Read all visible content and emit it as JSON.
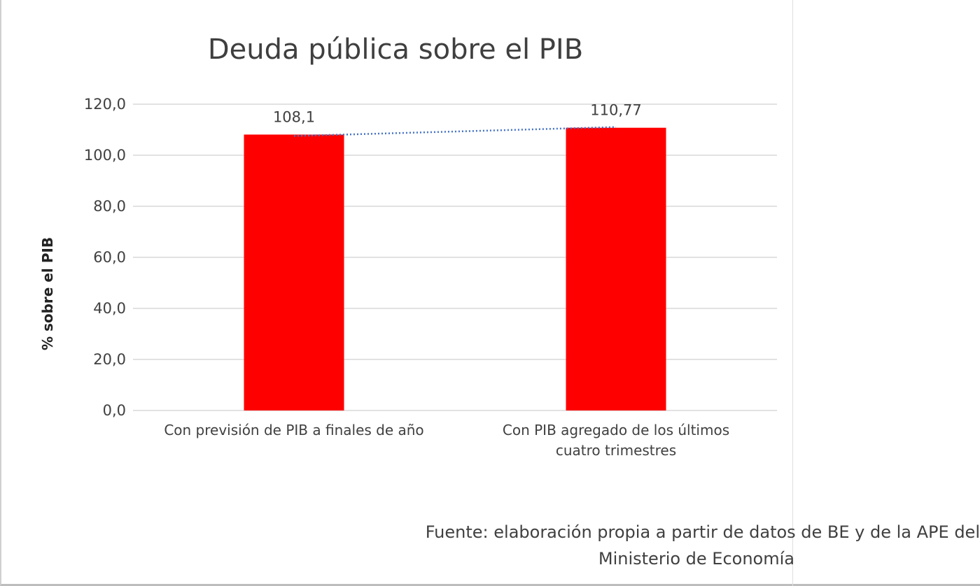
{
  "chart_data": {
    "type": "bar",
    "title": "Deuda pública sobre el PIB",
    "ylabel": "% sobre el PIB",
    "xlabel": "",
    "categories": [
      [
        "Con previsión de PIB a finales de año"
      ],
      [
        "Con PIB agregado de los últimos",
        "cuatro trimestres"
      ]
    ],
    "values": [
      108.1,
      110.77
    ],
    "data_labels": [
      "108,1",
      "110,77"
    ],
    "ylim": [
      0,
      120
    ],
    "yticks": [
      0,
      20,
      40,
      60,
      80,
      100,
      120
    ],
    "ytick_labels": [
      "0,0",
      "20,0",
      "40,0",
      "60,0",
      "80,0",
      "100,0",
      "120,0"
    ],
    "grid": true,
    "bar_color": "#ff0000",
    "trendline": {
      "style": "dotted",
      "color": "#4472c4"
    }
  },
  "source": {
    "line1": "Fuente: elaboración propia a partir de datos de BE y de la APE del",
    "line2": "Ministerio de Economía"
  }
}
